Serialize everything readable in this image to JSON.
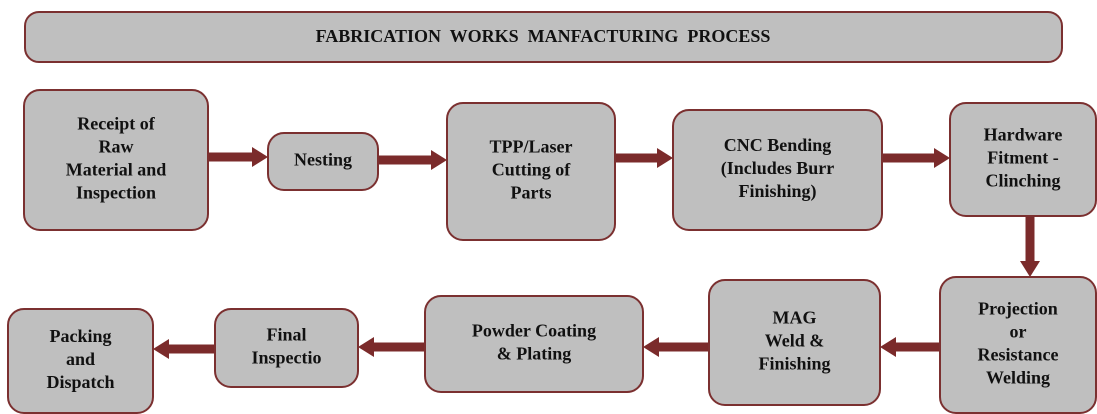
{
  "title": "FABRICATION  WORKS  MANFACTURING  PROCESS",
  "nodes": [
    {
      "lines": [
        "Receipt of",
        "Raw",
        "Material and",
        "Inspection"
      ]
    },
    {
      "lines": [
        "Nesting"
      ]
    },
    {
      "lines": [
        "TPP/Laser",
        "Cutting of",
        "Parts"
      ]
    },
    {
      "lines": [
        "CNC Bending",
        "(Includes Burr",
        "Finishing)"
      ]
    },
    {
      "lines": [
        "Hardware",
        "Fitment -",
        "Clinching"
      ]
    },
    {
      "lines": [
        "Projection",
        "or",
        "Resistance",
        "Welding"
      ]
    },
    {
      "lines": [
        "MAG",
        "Weld &",
        "Finishing"
      ]
    },
    {
      "lines": [
        "Powder Coating",
        "& Plating"
      ]
    },
    {
      "lines": [
        "Final",
        "Inspectio"
      ]
    },
    {
      "lines": [
        "Packing",
        "and",
        "Dispatch"
      ]
    }
  ]
}
